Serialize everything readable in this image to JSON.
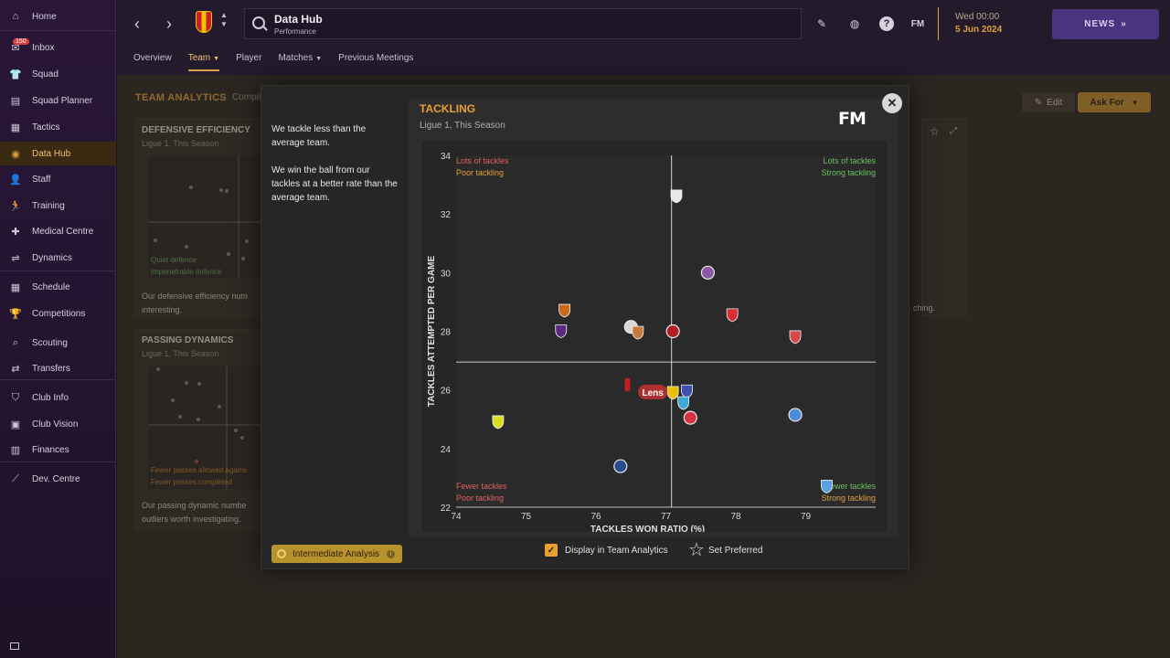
{
  "sidebar": {
    "items": [
      {
        "label": "Home",
        "icon": "home-icon",
        "glyph": "⌂"
      },
      {
        "label": "Inbox",
        "icon": "inbox-icon",
        "glyph": "✉",
        "badge": "150"
      },
      {
        "label": "Squad",
        "icon": "squad-icon",
        "glyph": "👕"
      },
      {
        "label": "Squad Planner",
        "icon": "clipboard-icon",
        "glyph": "▤"
      },
      {
        "label": "Tactics",
        "icon": "tactics-board-icon",
        "glyph": "▦"
      },
      {
        "label": "Data Hub",
        "icon": "data-hub-icon",
        "glyph": "◉",
        "active": true
      },
      {
        "label": "Staff",
        "icon": "staff-icon",
        "glyph": "👤"
      },
      {
        "label": "Training",
        "icon": "training-icon",
        "glyph": "🏃"
      },
      {
        "label": "Medical Centre",
        "icon": "medical-cross-icon",
        "glyph": "✚"
      },
      {
        "label": "Dynamics",
        "icon": "dynamics-icon",
        "glyph": "⇌"
      },
      {
        "label": "Schedule",
        "icon": "calendar-icon",
        "glyph": "▦"
      },
      {
        "label": "Competitions",
        "icon": "trophy-icon",
        "glyph": "🏆"
      },
      {
        "label": "Scouting",
        "icon": "magnifier-icon",
        "glyph": "⌕"
      },
      {
        "label": "Transfers",
        "icon": "transfer-arrows-icon",
        "glyph": "⇄"
      },
      {
        "label": "Club Info",
        "icon": "shield-icon",
        "glyph": "⛉"
      },
      {
        "label": "Club Vision",
        "icon": "briefcase-icon",
        "glyph": "▣"
      },
      {
        "label": "Finances",
        "icon": "finances-icon",
        "glyph": "▥"
      },
      {
        "label": "Dev. Centre",
        "icon": "dev-centre-icon",
        "glyph": "⟋"
      }
    ]
  },
  "header": {
    "title": "Data Hub",
    "subtitle": "Performance",
    "date_day": "Wed 00:00",
    "date": "5 Jun 2024",
    "news_label": "NEWS",
    "tabs": [
      {
        "label": "Overview"
      },
      {
        "label": "Team",
        "dropdown": true,
        "active": true
      },
      {
        "label": "Player"
      },
      {
        "label": "Matches",
        "dropdown": true
      },
      {
        "label": "Previous Meetings"
      }
    ],
    "fm_label": "FM"
  },
  "background": {
    "section_title": "TEAM ANALYTICS",
    "section_title_rest": "Compil",
    "edit_label": "Edit",
    "ask_for_label": "Ask For",
    "card1": {
      "title": "DEFENSIVE EFFICIENCY",
      "subtitle": "Ligue 1, This Season",
      "quad_a": "Quiet defence",
      "quad_b": "Impenetrable defence",
      "note_1": "Our defensive efficiency num",
      "note_2": "interesting."
    },
    "card2": {
      "title": "PASSING DYNAMICS",
      "subtitle": "Ligue 1, This Season",
      "quad_a": "Fewer passes allowed agains",
      "quad_b": "Fewer passes completed",
      "note_1": "Our passing dynamic numbe",
      "note_2": "outliers worth investigating."
    },
    "right_note": "ching."
  },
  "modal": {
    "desc_1": "We tackle less than the average team.",
    "desc_2": "We win the ball from our tackles at a better rate than the average team.",
    "title": "TACKLING",
    "subtitle": "Ligue 1, This Season",
    "logo": "FM",
    "analysis_label": "Intermediate Analysis",
    "display_label": "Display in Team Analytics",
    "set_preferred_label": "Set Preferred"
  },
  "chart_data": {
    "type": "scatter",
    "title": "TACKLING",
    "subtitle": "Ligue 1, This Season",
    "xlabel": "TACKLES WON RATIO (%)",
    "ylabel": "TACKLES ATTEMPTED PER GAME",
    "xlim": [
      74,
      80
    ],
    "ylim": [
      22,
      34
    ],
    "xticks": [
      74,
      75,
      76,
      77,
      78,
      79
    ],
    "yticks": [
      22,
      24,
      26,
      28,
      30,
      32,
      34
    ],
    "average_x": 77.08,
    "average_y": 26.95,
    "quadrant_labels": {
      "top_left": [
        "Lots of tackles",
        "Poor tackling"
      ],
      "top_right": [
        "Lots of tackles",
        "Strong tackling"
      ],
      "bottom_left": [
        "Fewer tackles",
        "Poor tackling"
      ],
      "bottom_right": [
        "Fewer tackles",
        "Strong tackling"
      ]
    },
    "highlight_label": "Lens",
    "points": [
      {
        "x": 77.15,
        "y": 32.6,
        "color": "#e8e8e8",
        "shape": "shield"
      },
      {
        "x": 77.6,
        "y": 30.0,
        "color": "#8a5aa8",
        "shape": "circle"
      },
      {
        "x": 75.55,
        "y": 28.7,
        "color": "#c86a1a",
        "shape": "shield"
      },
      {
        "x": 75.5,
        "y": 28.0,
        "color": "#5a2a80",
        "shape": "shield"
      },
      {
        "x": 76.5,
        "y": 28.15,
        "color": "#d8d8d8",
        "shape": "circle"
      },
      {
        "x": 76.6,
        "y": 27.95,
        "color": "#c87a3a",
        "shape": "shield"
      },
      {
        "x": 77.1,
        "y": 28.0,
        "color": "#b02020",
        "shape": "circle"
      },
      {
        "x": 77.95,
        "y": 28.55,
        "color": "#d83030",
        "shape": "shield"
      },
      {
        "x": 78.85,
        "y": 27.8,
        "color": "#d84848",
        "shape": "shield"
      },
      {
        "x": 76.45,
        "y": 26.15,
        "color": "#c02020",
        "shape": "bar"
      },
      {
        "x": 77.1,
        "y": 25.9,
        "color": "#e8c000",
        "shape": "shield",
        "highlight": true
      },
      {
        "x": 77.3,
        "y": 25.95,
        "color": "#4050b0",
        "shape": "shield"
      },
      {
        "x": 77.25,
        "y": 25.55,
        "color": "#40a8d8",
        "shape": "shield"
      },
      {
        "x": 77.35,
        "y": 25.05,
        "color": "#d83040",
        "shape": "circle"
      },
      {
        "x": 74.6,
        "y": 24.9,
        "color": "#d8e020",
        "shape": "shield"
      },
      {
        "x": 78.85,
        "y": 25.15,
        "color": "#4a8ad8",
        "shape": "circle"
      },
      {
        "x": 76.35,
        "y": 23.4,
        "color": "#2a4a90",
        "shape": "circle"
      },
      {
        "x": 79.3,
        "y": 22.7,
        "color": "#5aa0e0",
        "shape": "shield"
      }
    ]
  }
}
